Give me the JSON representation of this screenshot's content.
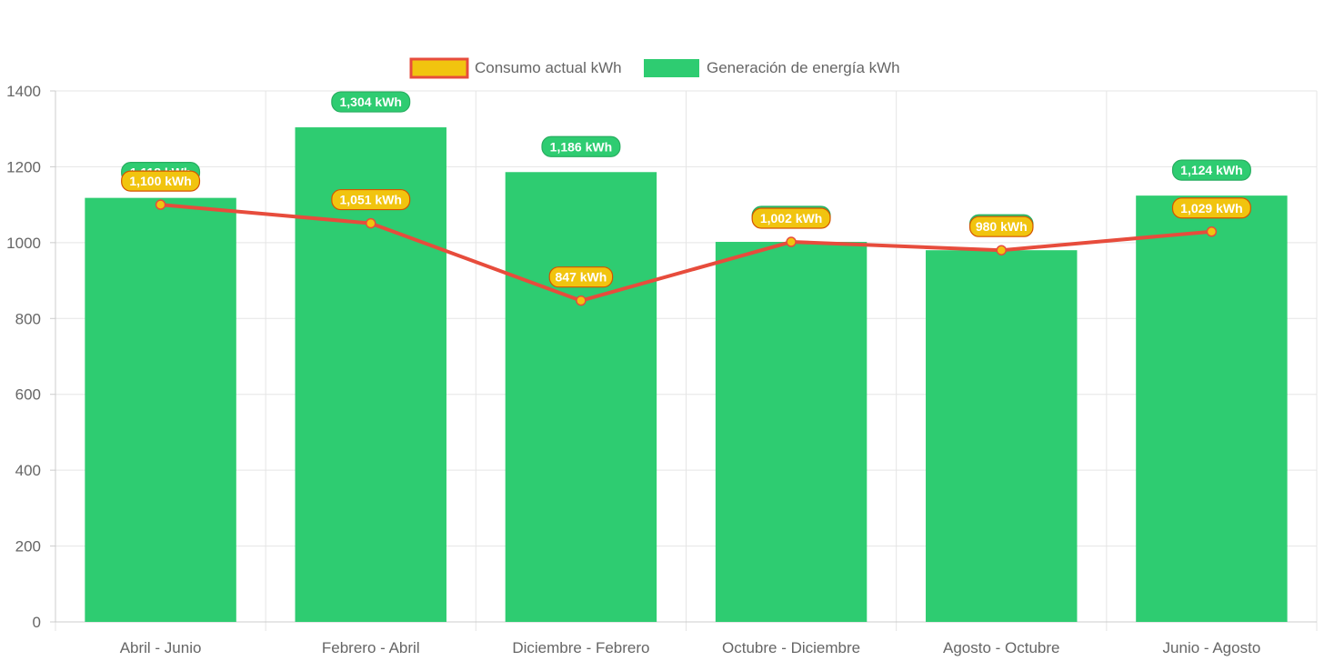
{
  "colors": {
    "bar": "#2ecc71",
    "line": "#e74c3c",
    "point_fill": "#f1c40f",
    "grid": "#e5e5e5",
    "axis": "#cccccc",
    "text": "#666666"
  },
  "chart_data": {
    "type": "bar",
    "categories": [
      "Abril - Junio",
      "Febrero - Abril",
      "Diciembre - Febrero",
      "Octubre - Diciembre",
      "Agosto - Octubre",
      "Junio - Agosto"
    ],
    "ylim": [
      0,
      1400
    ],
    "yticks": [
      "0",
      "200",
      "400",
      "600",
      "800",
      "1000",
      "1200",
      "1400"
    ],
    "grid": true,
    "legend_position": "top",
    "series": [
      {
        "name": "Consumo actual kWh",
        "type": "line",
        "values": [
          1100,
          1051,
          847,
          1002,
          980,
          1029
        ],
        "labels": [
          "1,100 kWh",
          "1,051 kWh",
          "847 kWh",
          "1,002 kWh",
          "980 kWh",
          "1,029 kWh"
        ]
      },
      {
        "name": "Generación de energía kWh",
        "type": "bar",
        "values": [
          1118,
          1304,
          1186,
          1002,
          980,
          1124
        ],
        "labels": [
          "1,118 kWh",
          "1,304 kWh",
          "1,186 kWh",
          "1,002 kWh",
          "980 kWh",
          "1,124 kWh"
        ]
      }
    ]
  }
}
